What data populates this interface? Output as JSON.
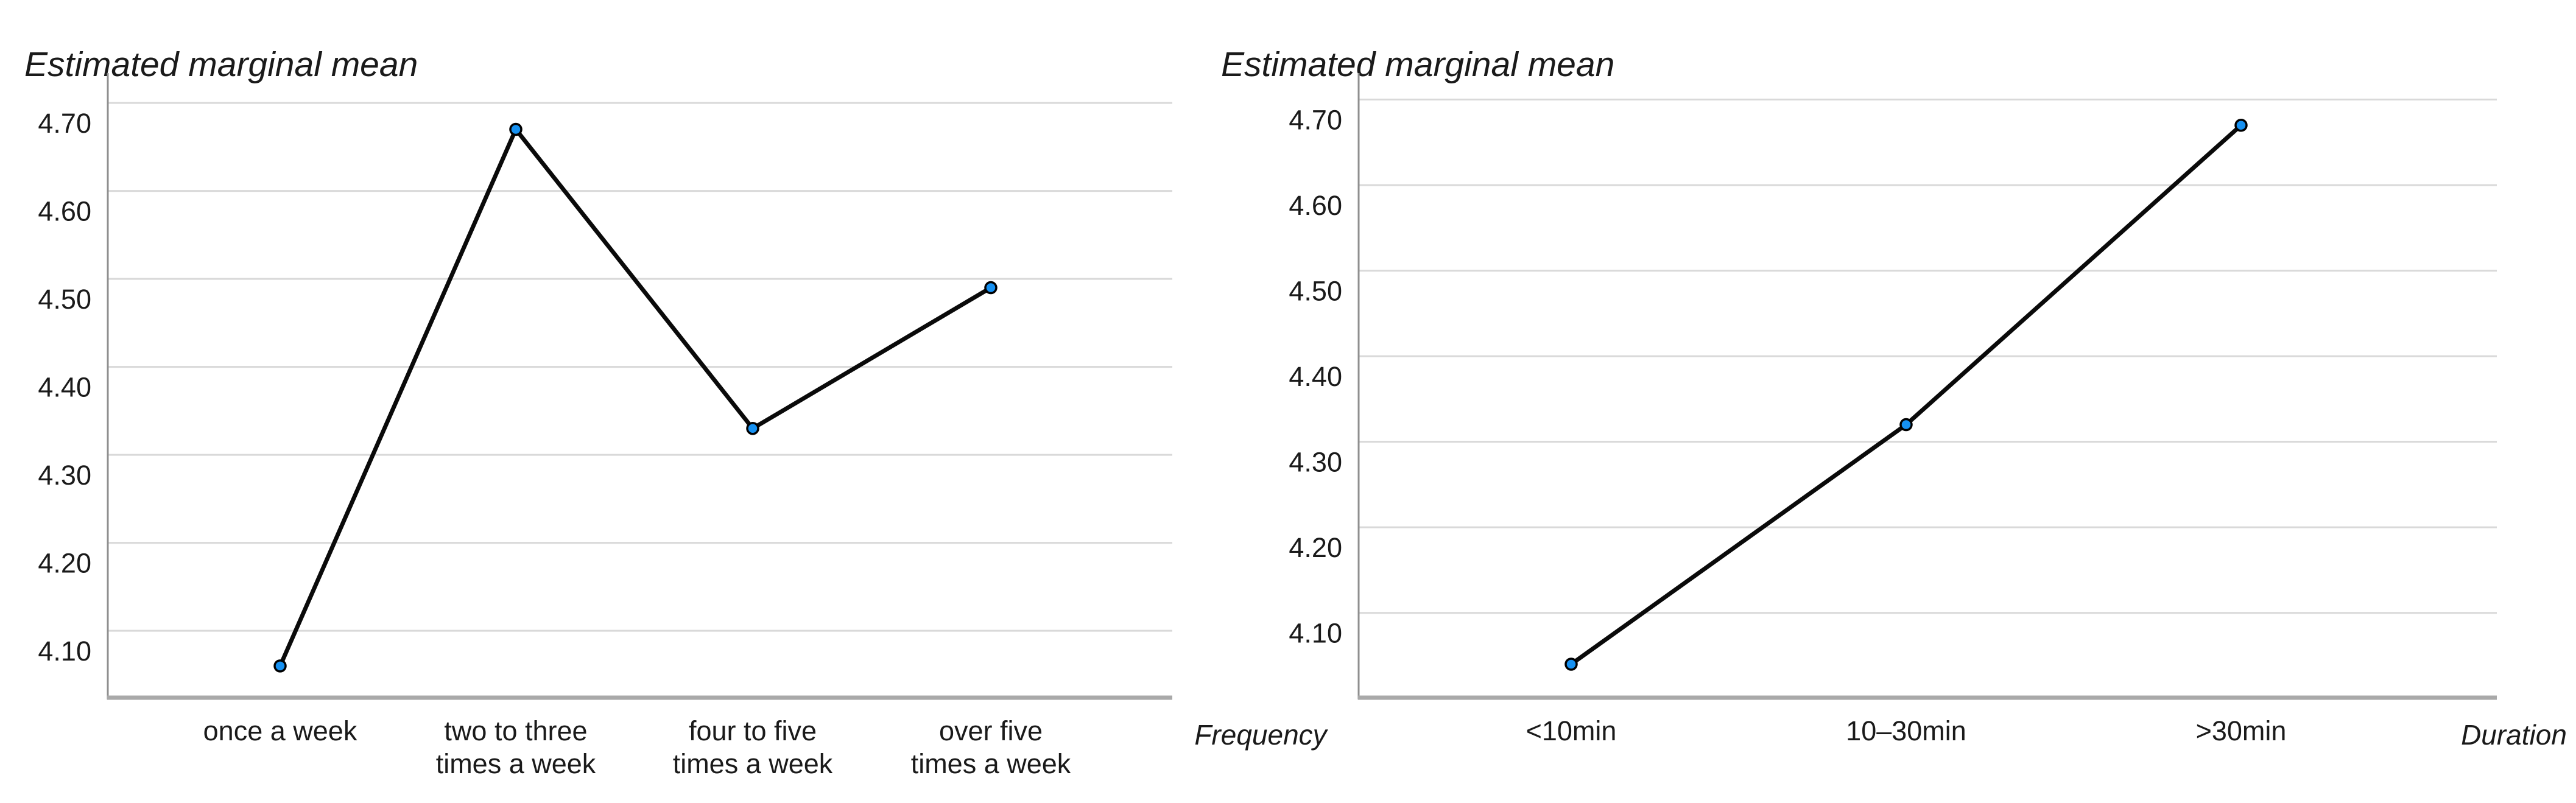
{
  "colors": {
    "background": "#ffffff",
    "line": "#0a0a0a",
    "marker_fill": "#1691f2",
    "marker_stroke": "#000000",
    "gridline": "#d9d9d9",
    "x_axis": "#a9a9a9",
    "y_axis": "#8f8f8f",
    "text": "#1a1a1a"
  },
  "chart_data": [
    {
      "type": "line",
      "title": "Estimated marginal mean",
      "xlabel": "Frequency",
      "ylabel": "",
      "categories": [
        "once a week",
        "two to three\ntimes a week",
        "four to five\ntimes a week",
        "over five\ntimes a week"
      ],
      "values": [
        4.06,
        4.67,
        4.33,
        4.49
      ],
      "yticks": [
        4.7,
        4.6,
        4.5,
        4.4,
        4.3,
        4.2,
        4.1
      ],
      "ylim": [
        4.026,
        4.734
      ],
      "grid": true,
      "legend": false
    },
    {
      "type": "line",
      "title": "Estimated marginal mean",
      "xlabel": "Duration",
      "ylabel": "",
      "categories": [
        "<10min",
        "10–30min",
        ">30min"
      ],
      "values": [
        4.04,
        4.32,
        4.67
      ],
      "yticks": [
        4.7,
        4.6,
        4.5,
        4.4,
        4.3,
        4.2,
        4.1
      ],
      "ylim": [
        4.003,
        4.731
      ],
      "grid": true,
      "legend": false
    }
  ]
}
